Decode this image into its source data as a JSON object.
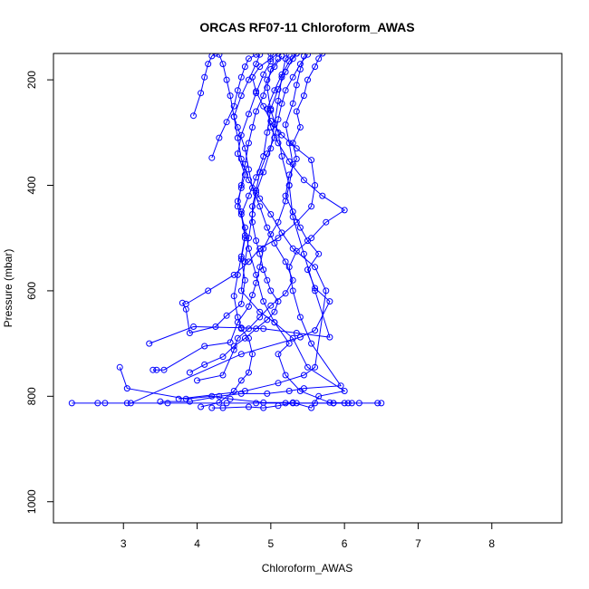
{
  "chart_data": {
    "type": "line",
    "title": "ORCAS RF07-11 Chloroform_AWAS",
    "xlabel": "Chloroform_AWAS",
    "ylabel": "Pressure (mbar)",
    "xlim": [
      2.05,
      8.95
    ],
    "ylim": [
      1040,
      150
    ],
    "y_reversed": true,
    "x_ticks": [
      3,
      4,
      5,
      6,
      7,
      8
    ],
    "y_ticks": [
      200,
      400,
      600,
      800,
      1000
    ],
    "grid": false,
    "legend": "none",
    "series_color": "#0000ff",
    "series": [
      {
        "points": [
          [
            2.3,
            813
          ],
          [
            2.65,
            813
          ],
          [
            2.75,
            813
          ],
          [
            3.05,
            813
          ],
          [
            3.6,
            813
          ],
          [
            4.4,
            813
          ],
          [
            4.8,
            813
          ],
          [
            5.2,
            813
          ],
          [
            5.35,
            813
          ],
          [
            5.6,
            813
          ],
          [
            5.85,
            813
          ],
          [
            6.05,
            813
          ],
          [
            6.2,
            813
          ],
          [
            6.45,
            813
          ],
          [
            6.5,
            813
          ]
        ]
      },
      {
        "points": [
          [
            3.4,
            750
          ],
          [
            3.45,
            750
          ],
          [
            3.55,
            750
          ],
          [
            4.1,
            705
          ],
          [
            4.45,
            698
          ],
          [
            4.55,
            660
          ],
          [
            4.7,
            630
          ],
          [
            4.75,
            608
          ],
          [
            4.8,
            585
          ],
          [
            4.85,
            555
          ],
          [
            4.9,
            520
          ],
          [
            5.0,
            493
          ],
          [
            5.1,
            470
          ],
          [
            5.2,
            430
          ],
          [
            5.25,
            400
          ],
          [
            5.3,
            360
          ],
          [
            5.25,
            320
          ],
          [
            5.2,
            285
          ],
          [
            5.3,
            245
          ],
          [
            5.35,
            210
          ],
          [
            5.4,
            180
          ],
          [
            5.45,
            155
          ]
        ]
      },
      {
        "points": [
          [
            2.95,
            745
          ],
          [
            3.05,
            785
          ],
          [
            3.85,
            805
          ],
          [
            4.2,
            800
          ],
          [
            4.45,
            805
          ],
          [
            4.9,
            812
          ],
          [
            5.3,
            812
          ],
          [
            5.55,
            822
          ],
          [
            5.65,
            800
          ],
          [
            6.0,
            790
          ],
          [
            5.5,
            745
          ],
          [
            5.3,
            690
          ],
          [
            5.05,
            660
          ],
          [
            4.85,
            640
          ],
          [
            4.6,
            600
          ],
          [
            4.65,
            545
          ],
          [
            4.7,
            500
          ],
          [
            4.75,
            455
          ],
          [
            4.8,
            415
          ],
          [
            4.9,
            375
          ],
          [
            5.0,
            330
          ],
          [
            5.05,
            285
          ],
          [
            5.1,
            240
          ],
          [
            5.15,
            195
          ],
          [
            5.2,
            160
          ],
          [
            5.25,
            152
          ]
        ]
      },
      {
        "points": [
          [
            3.8,
            623
          ],
          [
            3.85,
            635
          ],
          [
            3.9,
            680
          ],
          [
            4.25,
            668
          ],
          [
            4.4,
            647
          ],
          [
            4.6,
            625
          ],
          [
            4.65,
            580
          ],
          [
            4.6,
            540
          ],
          [
            4.65,
            500
          ],
          [
            4.6,
            455
          ],
          [
            4.7,
            420
          ],
          [
            4.8,
            385
          ],
          [
            4.9,
            345
          ],
          [
            4.95,
            300
          ],
          [
            5.0,
            255
          ],
          [
            5.1,
            218
          ],
          [
            5.2,
            185
          ],
          [
            5.3,
            160
          ],
          [
            5.35,
            150
          ]
        ]
      },
      {
        "points": [
          [
            3.35,
            700
          ],
          [
            3.95,
            668
          ],
          [
            4.6,
            670
          ],
          [
            4.9,
            672
          ],
          [
            5.35,
            680
          ],
          [
            5.8,
            688
          ],
          [
            5.6,
            600
          ],
          [
            5.45,
            530
          ],
          [
            5.3,
            460
          ],
          [
            5.25,
            400
          ],
          [
            5.15,
            345
          ],
          [
            5.1,
            300
          ],
          [
            5.0,
            258
          ],
          [
            4.95,
            215
          ],
          [
            5.0,
            180
          ],
          [
            5.1,
            160
          ]
        ]
      },
      {
        "points": [
          [
            4.2,
            822
          ],
          [
            4.35,
            822
          ],
          [
            4.7,
            820
          ],
          [
            4.9,
            822
          ],
          [
            5.1,
            818
          ],
          [
            5.3,
            813
          ],
          [
            5.85,
            813
          ],
          [
            6.0,
            813
          ],
          [
            6.1,
            813
          ],
          [
            5.8,
            812
          ],
          [
            5.4,
            790
          ],
          [
            5.2,
            760
          ],
          [
            5.1,
            720
          ],
          [
            5.25,
            700
          ],
          [
            5.05,
            660
          ],
          [
            4.9,
            620
          ],
          [
            4.8,
            570
          ],
          [
            4.7,
            520
          ],
          [
            4.65,
            480
          ],
          [
            4.55,
            440
          ],
          [
            4.6,
            400
          ],
          [
            4.65,
            360
          ],
          [
            4.7,
            320
          ],
          [
            4.75,
            290
          ],
          [
            4.8,
            260
          ],
          [
            4.9,
            230
          ],
          [
            4.95,
            200
          ],
          [
            5.05,
            175
          ],
          [
            5.15,
            155
          ]
        ]
      },
      {
        "points": [
          [
            4.05,
            820
          ],
          [
            4.3,
            812
          ],
          [
            4.5,
            790
          ],
          [
            4.6,
            770
          ],
          [
            4.7,
            755
          ],
          [
            4.75,
            720
          ],
          [
            4.7,
            690
          ],
          [
            4.6,
            672
          ],
          [
            4.55,
            650
          ],
          [
            4.5,
            610
          ],
          [
            4.55,
            570
          ],
          [
            4.6,
            535
          ],
          [
            4.65,
            495
          ],
          [
            4.6,
            450
          ],
          [
            4.55,
            430
          ],
          [
            4.6,
            405
          ],
          [
            4.65,
            380
          ],
          [
            4.55,
            340
          ],
          [
            4.6,
            305
          ],
          [
            4.7,
            265
          ],
          [
            4.8,
            225
          ],
          [
            4.9,
            190
          ],
          [
            5.0,
            165
          ],
          [
            5.0,
            150
          ]
        ]
      },
      {
        "points": [
          [
            4.0,
            770
          ],
          [
            4.35,
            760
          ],
          [
            4.5,
            712
          ],
          [
            4.55,
            690
          ],
          [
            4.7,
            672
          ],
          [
            4.85,
            650
          ],
          [
            5.0,
            628
          ],
          [
            5.2,
            605
          ],
          [
            5.3,
            580
          ],
          [
            5.2,
            545
          ],
          [
            5.05,
            510
          ],
          [
            4.95,
            480
          ],
          [
            4.85,
            440
          ],
          [
            4.75,
            405
          ],
          [
            4.7,
            370
          ],
          [
            4.65,
            330
          ],
          [
            4.55,
            290
          ],
          [
            4.5,
            270
          ],
          [
            4.6,
            230
          ],
          [
            4.7,
            200
          ],
          [
            4.8,
            170
          ],
          [
            4.85,
            152
          ]
        ]
      },
      {
        "points": [
          [
            3.75,
            805
          ],
          [
            4.65,
            790
          ],
          [
            5.1,
            775
          ],
          [
            5.45,
            760
          ],
          [
            5.6,
            745
          ],
          [
            5.75,
            600
          ],
          [
            5.6,
            555
          ],
          [
            5.3,
            520
          ],
          [
            5.15,
            490
          ],
          [
            5.0,
            455
          ],
          [
            4.85,
            425
          ],
          [
            4.7,
            390
          ],
          [
            4.6,
            350
          ],
          [
            4.55,
            310
          ],
          [
            4.5,
            270
          ],
          [
            4.45,
            230
          ],
          [
            4.4,
            200
          ],
          [
            4.35,
            170
          ],
          [
            4.3,
            152
          ]
        ]
      },
      {
        "points": [
          [
            3.5,
            810
          ],
          [
            3.9,
            810
          ],
          [
            4.3,
            800
          ],
          [
            4.6,
            795
          ],
          [
            4.95,
            795
          ],
          [
            5.25,
            790
          ],
          [
            5.45,
            785
          ],
          [
            5.95,
            780
          ],
          [
            5.55,
            700
          ],
          [
            5.4,
            650
          ],
          [
            5.3,
            600
          ],
          [
            5.25,
            555
          ],
          [
            5.35,
            525
          ],
          [
            5.55,
            500
          ],
          [
            5.75,
            470
          ],
          [
            6.0,
            447
          ],
          [
            5.7,
            420
          ],
          [
            5.45,
            390
          ],
          [
            5.25,
            355
          ],
          [
            5.1,
            320
          ],
          [
            5.0,
            290
          ],
          [
            4.95,
            255
          ],
          [
            5.05,
            220
          ],
          [
            5.15,
            190
          ],
          [
            5.25,
            165
          ],
          [
            5.35,
            150
          ]
        ]
      },
      {
        "points": [
          [
            3.9,
            755
          ],
          [
            4.1,
            740
          ],
          [
            4.35,
            725
          ],
          [
            4.5,
            705
          ],
          [
            4.65,
            690
          ],
          [
            4.8,
            672
          ],
          [
            4.95,
            655
          ],
          [
            5.05,
            640
          ],
          [
            5.1,
            620
          ],
          [
            5.0,
            600
          ],
          [
            4.95,
            580
          ],
          [
            4.9,
            560
          ],
          [
            4.85,
            530
          ],
          [
            4.8,
            505
          ],
          [
            4.75,
            470
          ],
          [
            4.75,
            440
          ],
          [
            4.8,
            410
          ],
          [
            4.85,
            375
          ],
          [
            4.95,
            340
          ],
          [
            5.05,
            310
          ],
          [
            5.1,
            275
          ],
          [
            5.15,
            245
          ],
          [
            5.2,
            220
          ],
          [
            5.3,
            195
          ],
          [
            5.4,
            170
          ],
          [
            5.5,
            152
          ]
        ]
      },
      {
        "points": [
          [
            3.85,
            625
          ],
          [
            4.15,
            600
          ],
          [
            4.5,
            570
          ],
          [
            4.7,
            545
          ],
          [
            4.85,
            520
          ],
          [
            5.1,
            500
          ],
          [
            5.35,
            470
          ],
          [
            5.55,
            440
          ],
          [
            5.6,
            400
          ],
          [
            5.55,
            352
          ],
          [
            5.35,
            330
          ],
          [
            5.15,
            305
          ],
          [
            5.0,
            278
          ],
          [
            4.9,
            250
          ],
          [
            4.8,
            222
          ],
          [
            4.75,
            195
          ],
          [
            4.85,
            175
          ],
          [
            5.0,
            160
          ],
          [
            5.1,
            150
          ]
        ]
      },
      {
        "points": [
          [
            3.95,
            268
          ],
          [
            4.05,
            225
          ],
          [
            4.1,
            195
          ],
          [
            4.15,
            170
          ],
          [
            4.2,
            155
          ],
          [
            4.25,
            150
          ]
        ]
      },
      {
        "points": [
          [
            4.2,
            348
          ],
          [
            4.3,
            310
          ],
          [
            4.4,
            280
          ],
          [
            4.5,
            250
          ],
          [
            4.55,
            220
          ],
          [
            4.6,
            195
          ],
          [
            4.65,
            175
          ],
          [
            4.7,
            160
          ],
          [
            4.8,
            152
          ]
        ]
      },
      {
        "points": [
          [
            3.1,
            813
          ],
          [
            4.6,
            720
          ],
          [
            5.4,
            688
          ],
          [
            5.6,
            675
          ],
          [
            5.8,
            620
          ],
          [
            5.6,
            595
          ],
          [
            5.5,
            560
          ],
          [
            5.65,
            530
          ],
          [
            5.5,
            505
          ],
          [
            5.4,
            480
          ],
          [
            5.3,
            450
          ],
          [
            5.2,
            420
          ],
          [
            5.25,
            380
          ],
          [
            5.35,
            350
          ],
          [
            5.3,
            320
          ],
          [
            5.4,
            290
          ],
          [
            5.35,
            260
          ],
          [
            5.45,
            230
          ],
          [
            5.5,
            200
          ],
          [
            5.6,
            175
          ],
          [
            5.65,
            160
          ],
          [
            5.7,
            150
          ]
        ]
      }
    ]
  }
}
